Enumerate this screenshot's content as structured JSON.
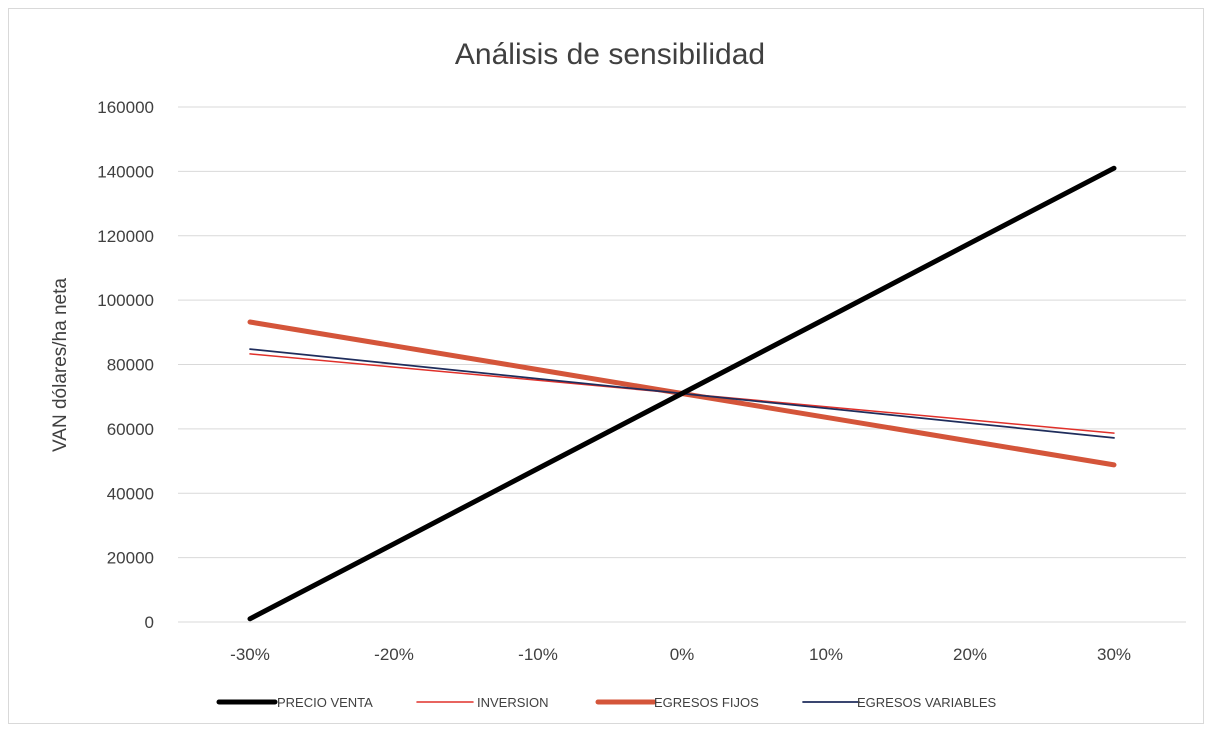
{
  "chart_data": {
    "type": "line",
    "title": "Análisis de sensibilidad",
    "xlabel": "",
    "ylabel": "VAN dólares/ha neta",
    "categories": [
      "-30%",
      "-20%",
      "-10%",
      "0%",
      "10%",
      "20%",
      "30%"
    ],
    "ylim": [
      0,
      160000
    ],
    "yticks": [
      0,
      20000,
      40000,
      60000,
      80000,
      100000,
      120000,
      140000,
      160000
    ],
    "grid": true,
    "legend_position": "bottom",
    "series": [
      {
        "name": "PRECIO VENTA",
        "color": "#000000",
        "values": [
          1000,
          24300,
          47700,
          71000,
          94300,
          117700,
          141000
        ]
      },
      {
        "name": "INVERSION",
        "color": "#e0302a",
        "values": [
          83300,
          79200,
          75100,
          71000,
          66900,
          62800,
          58700
        ]
      },
      {
        "name": "EGRESOS FIJOS",
        "color": "#d4553a",
        "values": [
          93200,
          85800,
          78400,
          71000,
          63600,
          56200,
          48800
        ]
      },
      {
        "name": "EGRESOS VARIABLES",
        "color": "#1f2d5c",
        "values": [
          84800,
          80200,
          75600,
          71000,
          66400,
          61800,
          57200
        ]
      }
    ]
  }
}
